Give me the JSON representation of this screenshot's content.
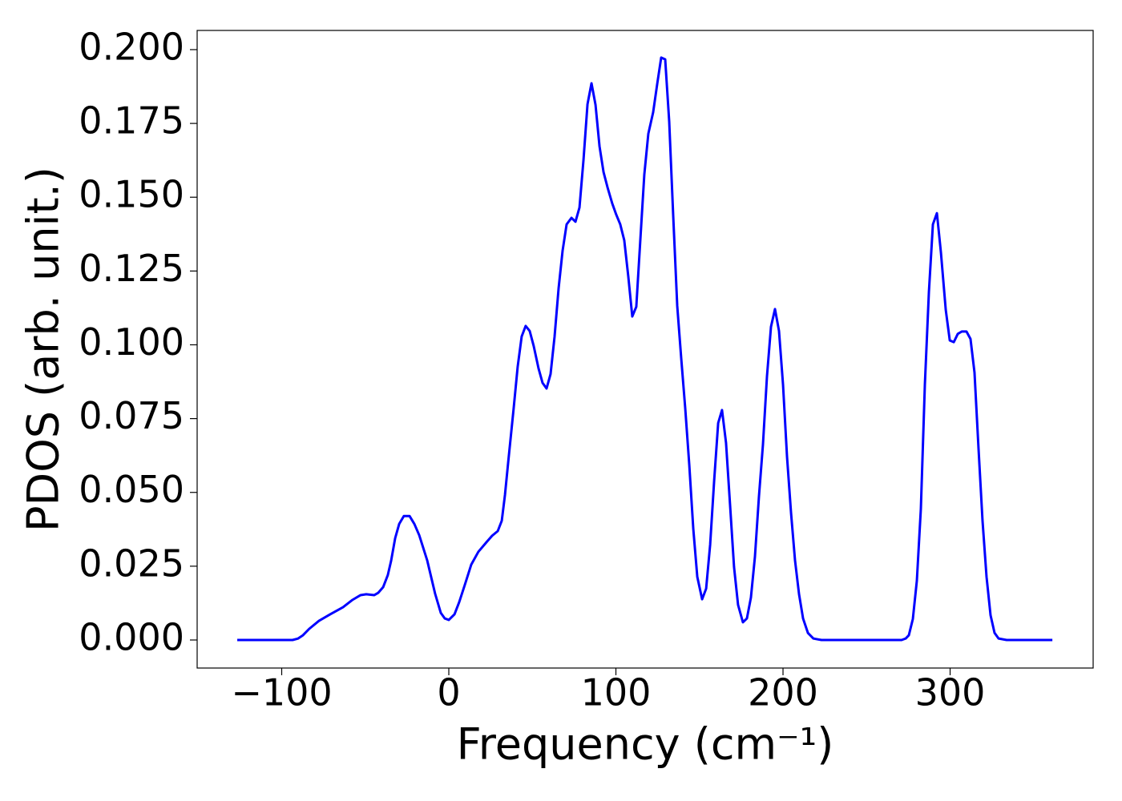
{
  "chart_data": {
    "type": "line",
    "x_label": "Frequency (cm⁻¹)",
    "y_label": "PDOS (arb. unit.)",
    "xlim": [
      -150.6,
      385.6
    ],
    "ylim": [
      -0.0095,
      0.2065
    ],
    "xticks": [
      {
        "value": -100,
        "label": "−100"
      },
      0,
      100,
      200,
      300
    ],
    "yticks": [
      {
        "value": 0,
        "label": "0.000"
      },
      {
        "value": 0.025,
        "label": "0.025"
      },
      {
        "value": 0.05,
        "label": "0.050"
      },
      {
        "value": 0.075,
        "label": "0.075"
      },
      {
        "value": 0.1,
        "label": "0.100"
      },
      {
        "value": 0.125,
        "label": "0.125"
      },
      {
        "value": 0.15,
        "label": "0.150"
      },
      {
        "value": 0.175,
        "label": "0.175"
      },
      {
        "value": 0.2,
        "label": "0.200"
      }
    ],
    "grid": false,
    "series": [
      {
        "color": "#0000ff",
        "x": [
          -126.6,
          -93.5,
          -90.2,
          -87.3,
          -83.5,
          -77.7,
          -71,
          -63.3,
          -57.6,
          -52.8,
          -49.4,
          -44.6,
          -42.2,
          -39.3,
          -36.5,
          -34.5,
          -32.1,
          -29.7,
          -26.9,
          -23.5,
          -20.6,
          -17.7,
          -12.9,
          -8.2,
          -4.8,
          -2.4,
          0,
          3.4,
          6.2,
          9.6,
          13.4,
          17.7,
          22.5,
          25.9,
          29.3,
          31.7,
          33.6,
          35.5,
          38.8,
          41.2,
          43.6,
          46,
          48.4,
          50.8,
          53.7,
          56.1,
          58.5,
          60.9,
          63.3,
          65.7,
          68.1,
          70.5,
          73.4,
          75.8,
          78.2,
          80.6,
          83,
          85.4,
          87.8,
          90.2,
          92.6,
          95,
          97.8,
          100.2,
          102.6,
          105,
          107.4,
          109.8,
          112.2,
          114.6,
          117,
          119.4,
          122.3,
          124.7,
          127.1,
          129.5,
          131.9,
          134.3,
          136.7,
          139.1,
          141.5,
          143.9,
          146.3,
          148.7,
          151.6,
          154,
          156.4,
          158.8,
          161.2,
          163.5,
          165.9,
          168.3,
          170.7,
          173.1,
          176,
          178.4,
          180.8,
          183.2,
          185.6,
          188,
          190.4,
          192.8,
          195.2,
          197.6,
          200,
          202.4,
          204.8,
          207.2,
          209.6,
          212,
          214.9,
          218.2,
          223,
          271,
          273.4,
          275.3,
          277.7,
          280.1,
          282.5,
          284.9,
          287.3,
          289.7,
          292.1,
          294.5,
          297.4,
          299.8,
          302.2,
          304.6,
          307,
          309.8,
          312.2,
          314.6,
          317,
          319.4,
          321.8,
          324.2,
          326.6,
          329,
          333.8,
          361.2
        ],
        "values": [
          0,
          0,
          0.0005,
          0.0016,
          0.0038,
          0.0065,
          0.0087,
          0.0111,
          0.0136,
          0.0152,
          0.0155,
          0.0152,
          0.016,
          0.0179,
          0.022,
          0.0269,
          0.0345,
          0.0393,
          0.042,
          0.042,
          0.0393,
          0.0355,
          0.0269,
          0.0157,
          0.0092,
          0.0073,
          0.0068,
          0.0087,
          0.0128,
          0.0187,
          0.0255,
          0.0299,
          0.0331,
          0.0353,
          0.0369,
          0.0404,
          0.0491,
          0.06,
          0.0784,
          0.0925,
          0.1028,
          0.1064,
          0.1047,
          0.0996,
          0.092,
          0.0871,
          0.0852,
          0.0901,
          0.1028,
          0.1191,
          0.1319,
          0.1408,
          0.143,
          0.1417,
          0.1465,
          0.1626,
          0.1815,
          0.1886,
          0.1813,
          0.1672,
          0.1585,
          0.1533,
          0.1479,
          0.1441,
          0.1408,
          0.1354,
          0.1232,
          0.1096,
          0.1129,
          0.1354,
          0.1577,
          0.1715,
          0.1788,
          0.1883,
          0.1973,
          0.1967,
          0.1756,
          0.1436,
          0.1132,
          0.0953,
          0.0784,
          0.0594,
          0.0377,
          0.0214,
          0.0138,
          0.0174,
          0.0323,
          0.054,
          0.0735,
          0.0779,
          0.0668,
          0.0459,
          0.0247,
          0.0119,
          0.006,
          0.0073,
          0.0144,
          0.0282,
          0.0486,
          0.0662,
          0.0893,
          0.1061,
          0.1121,
          0.1047,
          0.0866,
          0.0621,
          0.0431,
          0.0269,
          0.0155,
          0.0073,
          0.0024,
          0.0005,
          0,
          0,
          0.0005,
          0.0016,
          0.0071,
          0.0201,
          0.0445,
          0.0866,
          0.1178,
          0.1408,
          0.1446,
          0.1313,
          0.1118,
          0.1015,
          0.1009,
          0.1037,
          0.1045,
          0.1045,
          0.102,
          0.0906,
          0.0649,
          0.0404,
          0.0214,
          0.0084,
          0.0024,
          0.0005,
          0,
          0
        ]
      }
    ]
  }
}
